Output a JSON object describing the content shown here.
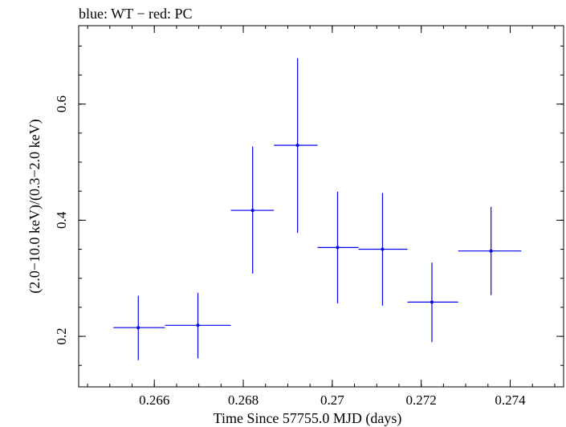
{
  "chart_data": {
    "type": "scatter",
    "title": "blue: WT − red: PC",
    "xlabel": "Time Since 57755.0 MJD (days)",
    "ylabel": "(2.0−10.0 keV)/(0.3−2.0 keV)",
    "xlim": [
      0.2643,
      0.2752
    ],
    "ylim": [
      0.113,
      0.735
    ],
    "x_ticks": [
      0.266,
      0.268,
      0.27,
      0.272,
      0.274
    ],
    "x_tick_labels": [
      "0.266",
      "0.268",
      "0.27",
      "0.272",
      "0.274"
    ],
    "y_ticks": [
      0.2,
      0.4,
      0.6
    ],
    "y_tick_labels": [
      "0.2",
      "0.4",
      "0.6"
    ],
    "grid": false,
    "series": [
      {
        "color": "#0000ee",
        "points": [
          {
            "x": 0.26564,
            "xlo": 0.26508,
            "xhi": 0.26624,
            "y": 0.215,
            "ylo": 0.159,
            "yhi": 0.27
          },
          {
            "x": 0.26698,
            "xlo": 0.26624,
            "xhi": 0.26772,
            "y": 0.219,
            "ylo": 0.162,
            "yhi": 0.275
          },
          {
            "x": 0.26821,
            "xlo": 0.26772,
            "xhi": 0.26869,
            "y": 0.417,
            "ylo": 0.308,
            "yhi": 0.527
          },
          {
            "x": 0.26922,
            "xlo": 0.26869,
            "xhi": 0.26967,
            "y": 0.529,
            "ylo": 0.378,
            "yhi": 0.679
          },
          {
            "x": 0.27012,
            "xlo": 0.26967,
            "xhi": 0.27059,
            "y": 0.353,
            "ylo": 0.257,
            "yhi": 0.449
          },
          {
            "x": 0.27113,
            "xlo": 0.27059,
            "xhi": 0.27169,
            "y": 0.35,
            "ylo": 0.253,
            "yhi": 0.447
          },
          {
            "x": 0.27224,
            "xlo": 0.27169,
            "xhi": 0.27283,
            "y": 0.259,
            "ylo": 0.19,
            "yhi": 0.327
          },
          {
            "x": 0.27357,
            "xlo": 0.27283,
            "xhi": 0.27425,
            "y": 0.347,
            "ylo": 0.271,
            "yhi": 0.423
          }
        ]
      }
    ]
  }
}
